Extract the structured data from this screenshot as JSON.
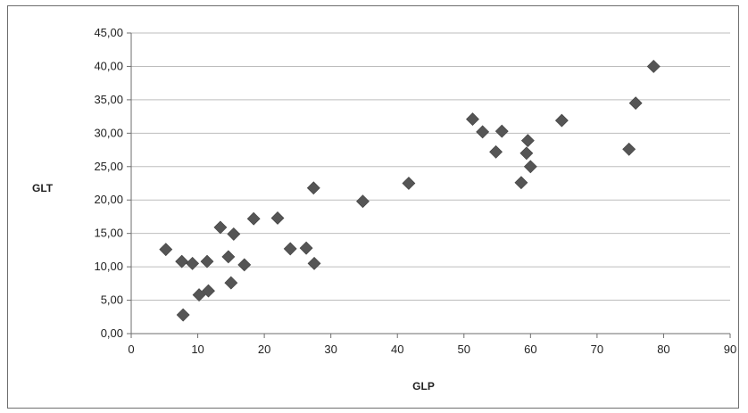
{
  "chart_data": {
    "type": "scatter",
    "xlabel": "GLP",
    "ylabel": "GLT",
    "xlim": [
      0,
      90
    ],
    "ylim": [
      0,
      45
    ],
    "x_ticks": [
      "0",
      "10",
      "20",
      "30",
      "40",
      "50",
      "60",
      "70",
      "80",
      "90"
    ],
    "y_ticks": [
      "0,00",
      "5,00",
      "10,00",
      "15,00",
      "20,00",
      "25,00",
      "30,00",
      "35,00",
      "40,00",
      "45,00"
    ],
    "grid": "horizontal",
    "marker": "diamond",
    "marker_color": "#555555",
    "points": [
      {
        "x": 5.2,
        "y": 12.6
      },
      {
        "x": 7.6,
        "y": 10.8
      },
      {
        "x": 7.8,
        "y": 2.8
      },
      {
        "x": 9.2,
        "y": 10.5
      },
      {
        "x": 10.2,
        "y": 5.8
      },
      {
        "x": 11.4,
        "y": 10.8
      },
      {
        "x": 11.6,
        "y": 6.4
      },
      {
        "x": 13.4,
        "y": 15.9
      },
      {
        "x": 14.6,
        "y": 11.5
      },
      {
        "x": 15.0,
        "y": 7.6
      },
      {
        "x": 15.4,
        "y": 14.9
      },
      {
        "x": 17.0,
        "y": 10.3
      },
      {
        "x": 18.4,
        "y": 17.2
      },
      {
        "x": 22.0,
        "y": 17.3
      },
      {
        "x": 23.9,
        "y": 12.7
      },
      {
        "x": 26.3,
        "y": 12.8
      },
      {
        "x": 27.4,
        "y": 21.8
      },
      {
        "x": 27.5,
        "y": 10.5
      },
      {
        "x": 34.8,
        "y": 19.8
      },
      {
        "x": 41.7,
        "y": 22.5
      },
      {
        "x": 51.3,
        "y": 32.1
      },
      {
        "x": 52.8,
        "y": 30.2
      },
      {
        "x": 54.8,
        "y": 27.2
      },
      {
        "x": 55.7,
        "y": 30.3
      },
      {
        "x": 58.6,
        "y": 22.6
      },
      {
        "x": 59.4,
        "y": 27.0
      },
      {
        "x": 59.6,
        "y": 28.9
      },
      {
        "x": 60.0,
        "y": 25.0
      },
      {
        "x": 64.7,
        "y": 31.9
      },
      {
        "x": 74.8,
        "y": 27.6
      },
      {
        "x": 75.8,
        "y": 34.5
      },
      {
        "x": 78.5,
        "y": 40.0
      }
    ]
  }
}
